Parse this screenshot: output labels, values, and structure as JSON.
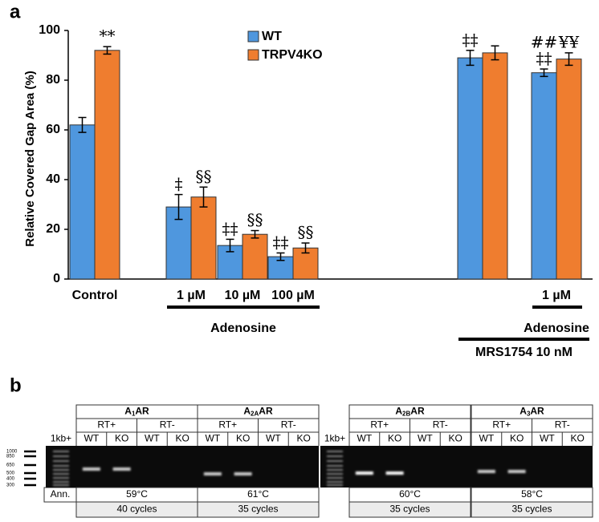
{
  "chart_data": {
    "type": "bar",
    "panel_label": "a",
    "ylabel": "Relative Covered Gap Area (%)",
    "ylim": [
      0,
      100
    ],
    "yticks": [
      0,
      20,
      40,
      60,
      80,
      100
    ],
    "categories": [
      "Control",
      "1 µM",
      "10 µM",
      "100 µM",
      null,
      "1 µM"
    ],
    "series": [
      {
        "name": "WT",
        "color": "#4f97de",
        "values": [
          62,
          29,
          13.5,
          9,
          89,
          83
        ],
        "errors": [
          3,
          5,
          2.5,
          1.5,
          3,
          1.5
        ],
        "annotations": [
          null,
          [
            "‡"
          ],
          [
            "‡‡"
          ],
          [
            "‡‡"
          ],
          [
            "‡‡"
          ],
          [
            "##",
            "‡‡"
          ]
        ]
      },
      {
        "name": "TRPV4KO",
        "color": "#ef7d2f",
        "values": [
          92,
          33,
          18,
          12.5,
          91,
          88.5
        ],
        "errors": [
          1.5,
          4,
          1.5,
          2,
          2.8,
          2.5
        ],
        "annotations": [
          [
            "**"
          ],
          [
            "§§"
          ],
          [
            "§§"
          ],
          [
            "§§"
          ],
          null,
          [
            "¥¥"
          ]
        ]
      }
    ],
    "groups": [
      {
        "label": "Adenosine"
      },
      {
        "label": "Adenosine"
      },
      {
        "label": "MRS1754 10 nM"
      }
    ],
    "legend": "top-center"
  },
  "panel_b": {
    "label": "b",
    "annotation_label": "Ann.",
    "ladder_sizes": [
      1000,
      850,
      650,
      500,
      400,
      300
    ],
    "blocks": [
      {
        "ladder_label": "1kb+",
        "genes": [
          {
            "gene": {
              "name": "A",
              "sub": "1",
              "suffix": "AR"
            },
            "rt_pos": "RT+",
            "rt_neg": "RT-",
            "lanes": [
              "WT",
              "KO",
              "WT",
              "KO"
            ],
            "temperature": "59°C",
            "cycles": "40 cycles"
          },
          {
            "gene": {
              "name": "A",
              "sub": "2A",
              "suffix": "AR"
            },
            "rt_pos": "RT+",
            "rt_neg": "RT-",
            "lanes": [
              "WT",
              "KO",
              "WT",
              "KO"
            ],
            "temperature": "61°C",
            "cycles": "35 cycles"
          }
        ]
      },
      {
        "ladder_label": "1kb+",
        "genes": [
          {
            "gene": {
              "name": "A",
              "sub": "2B",
              "suffix": "AR"
            },
            "rt_pos": "RT+",
            "rt_neg": "RT-",
            "lanes": [
              "WT",
              "KO",
              "WT",
              "KO"
            ],
            "temperature": "60°C",
            "cycles": "35 cycles"
          },
          {
            "gene": {
              "name": "A",
              "sub": "3",
              "suffix": "AR"
            },
            "rt_pos": "RT+",
            "rt_neg": "RT-",
            "lanes": [
              "WT",
              "KO",
              "WT",
              "KO"
            ],
            "temperature": "58°C",
            "cycles": "35 cycles"
          }
        ]
      }
    ]
  }
}
